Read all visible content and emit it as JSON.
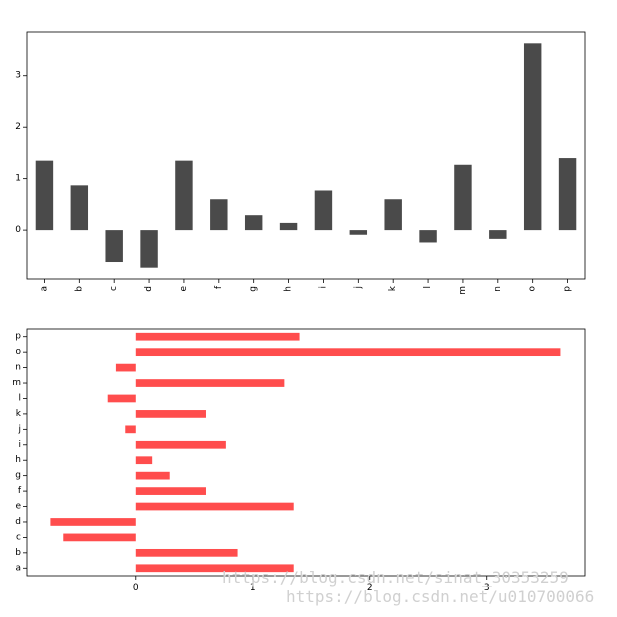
{
  "chart_data": [
    {
      "type": "bar",
      "categories": [
        "a",
        "b",
        "c",
        "d",
        "e",
        "f",
        "g",
        "h",
        "i",
        "j",
        "k",
        "l",
        "m",
        "n",
        "o",
        "p"
      ],
      "values": [
        1.35,
        0.87,
        -0.62,
        -0.73,
        1.35,
        0.6,
        0.29,
        0.14,
        0.77,
        -0.09,
        0.6,
        -0.24,
        1.27,
        -0.17,
        3.63,
        1.4
      ],
      "ylim": [
        -0.95,
        3.85
      ],
      "yticks": [
        "0",
        "1",
        "2",
        "3"
      ],
      "color": "#4a4a4a",
      "grid": false
    },
    {
      "type": "barh",
      "categories": [
        "a",
        "b",
        "c",
        "d",
        "e",
        "f",
        "g",
        "h",
        "i",
        "j",
        "k",
        "l",
        "m",
        "n",
        "o",
        "p"
      ],
      "values": [
        1.35,
        0.87,
        -0.62,
        -0.73,
        1.35,
        0.6,
        0.29,
        0.14,
        0.77,
        -0.09,
        0.6,
        -0.24,
        1.27,
        -0.17,
        3.63,
        1.4
      ],
      "xlim": [
        -0.93,
        3.84
      ],
      "xticks": [
        "0",
        "1",
        "2",
        "3"
      ],
      "color": "#ff4d4d",
      "grid": false
    }
  ],
  "watermarks": [
    "https://blog.csdn.net/sinat_30353259",
    "https://blog.csdn.net/u010700066"
  ]
}
